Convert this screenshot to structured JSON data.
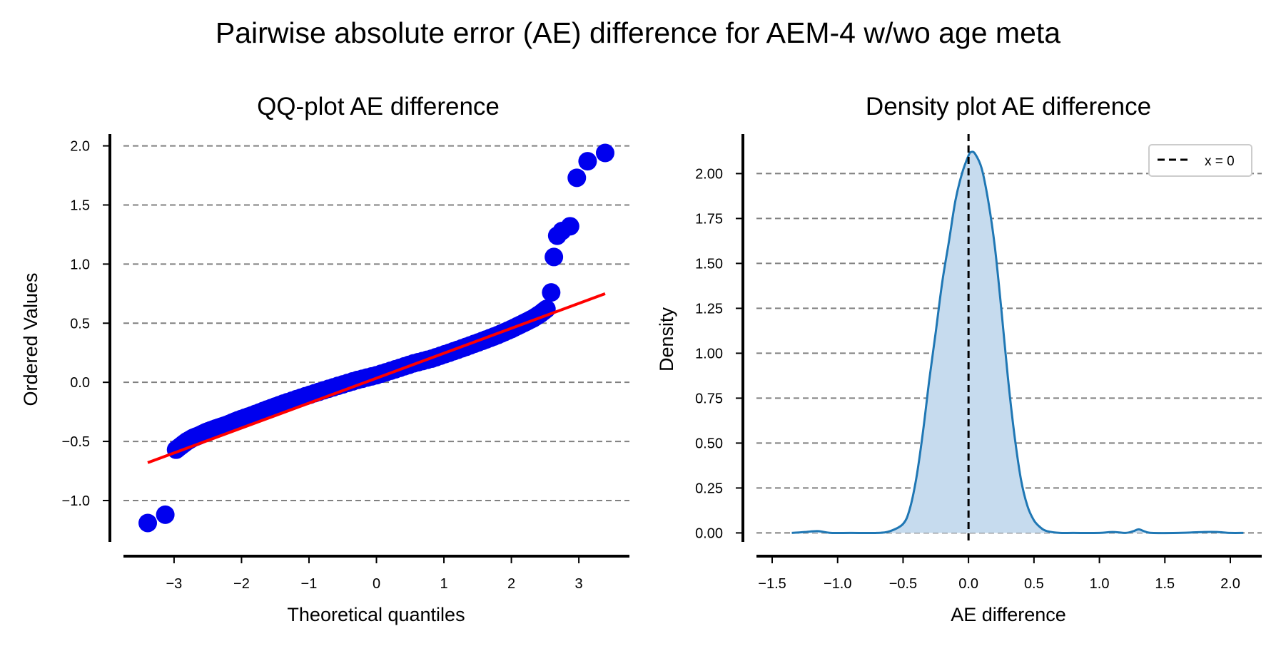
{
  "figure": {
    "title": "Pairwise absolute error (AE) difference for AEM-4 w/wo age meta"
  },
  "chart_data": [
    {
      "type": "scatter",
      "title": "QQ-plot AE difference",
      "xlabel": "Theoretical quantiles",
      "ylabel": "Ordered Values",
      "xlim": [
        -3.75,
        3.75
      ],
      "ylim": [
        -1.35,
        2.1
      ],
      "xticks": [
        -3,
        -2,
        -1,
        0,
        1,
        2,
        3
      ],
      "xtick_labels": [
        "−3",
        "−2",
        "−1",
        "0",
        "1",
        "2",
        "3"
      ],
      "yticks": [
        -1.0,
        -0.5,
        0.0,
        0.5,
        1.0,
        1.5,
        2.0
      ],
      "ytick_labels": [
        "−1.0",
        "−0.5",
        "0.0",
        "0.5",
        "1.0",
        "1.5",
        "2.0"
      ],
      "grid": "horizontal dashed",
      "marker_color": "#0000ee",
      "line_color": "#ff0000",
      "grid_color": "#808080",
      "fit_line": {
        "x": [
          -3.39,
          3.39
        ],
        "y": [
          -0.68,
          0.75
        ]
      },
      "points_x": [
        -3.39,
        -3.13,
        -2.97,
        -2.88,
        -2.81,
        -2.72,
        -2.63,
        -2.52,
        -2.38,
        -2.22,
        -2.05,
        -1.85,
        -1.62,
        -1.38,
        -1.12,
        -0.85,
        -0.57,
        -0.28,
        0.0,
        0.28,
        0.55,
        0.82,
        1.08,
        1.33,
        1.57,
        1.8,
        2.0,
        2.18,
        2.32,
        2.43,
        2.52,
        2.59,
        2.63,
        2.68,
        2.75,
        2.87,
        2.97,
        3.13,
        3.39
      ],
      "points_y": [
        -1.19,
        -1.12,
        -0.57,
        -0.53,
        -0.5,
        -0.47,
        -0.45,
        -0.42,
        -0.39,
        -0.36,
        -0.32,
        -0.28,
        -0.23,
        -0.18,
        -0.13,
        -0.08,
        -0.03,
        0.02,
        0.06,
        0.11,
        0.16,
        0.2,
        0.25,
        0.3,
        0.35,
        0.4,
        0.45,
        0.5,
        0.54,
        0.58,
        0.62,
        0.76,
        1.06,
        1.24,
        1.28,
        1.32,
        1.73,
        1.87,
        1.94
      ]
    },
    {
      "type": "area",
      "title": "Density plot AE difference",
      "xlabel": "AE difference",
      "ylabel": "Density",
      "xlim": [
        -1.62,
        2.24
      ],
      "ylim": [
        -0.05,
        2.22
      ],
      "xticks": [
        -1.5,
        -1.0,
        -0.5,
        0.0,
        0.5,
        1.0,
        1.5,
        2.0
      ],
      "xtick_labels": [
        "−1.5",
        "−1.0",
        "−0.5",
        "0.0",
        "0.5",
        "1.0",
        "1.5",
        "2.0"
      ],
      "yticks": [
        0.0,
        0.25,
        0.5,
        0.75,
        1.0,
        1.25,
        1.5,
        1.75,
        2.0
      ],
      "ytick_labels": [
        "0.00",
        "0.25",
        "0.50",
        "0.75",
        "1.00",
        "1.25",
        "1.50",
        "1.75",
        "2.00"
      ],
      "grid": "horizontal dashed",
      "line_color": "#1f77b4",
      "fill_color": "#c6dbee",
      "grid_color": "#808080",
      "legend": {
        "placement": "top-right",
        "label": "x = 0"
      },
      "vline_x": 0.0,
      "x": [
        -1.35,
        -1.25,
        -1.15,
        -1.05,
        -0.9,
        -0.7,
        -0.6,
        -0.5,
        -0.45,
        -0.4,
        -0.35,
        -0.3,
        -0.25,
        -0.2,
        -0.15,
        -0.1,
        -0.05,
        0.0,
        0.02,
        0.05,
        0.1,
        0.15,
        0.2,
        0.25,
        0.3,
        0.35,
        0.4,
        0.45,
        0.5,
        0.55,
        0.6,
        0.7,
        0.8,
        1.0,
        1.1,
        1.2,
        1.26,
        1.3,
        1.34,
        1.4,
        1.6,
        1.8,
        1.9,
        2.0,
        2.1
      ],
      "y": [
        0.0,
        0.005,
        0.01,
        0.0,
        0.0,
        0.0,
        0.01,
        0.05,
        0.13,
        0.3,
        0.55,
        0.85,
        1.12,
        1.4,
        1.62,
        1.85,
        2.0,
        2.1,
        2.12,
        2.11,
        2.03,
        1.85,
        1.6,
        1.25,
        0.87,
        0.55,
        0.3,
        0.15,
        0.07,
        0.03,
        0.01,
        0.0,
        0.0,
        0.0,
        0.005,
        0.0,
        0.01,
        0.02,
        0.01,
        0.0,
        0.0,
        0.005,
        0.005,
        0.0,
        0.0
      ]
    }
  ]
}
